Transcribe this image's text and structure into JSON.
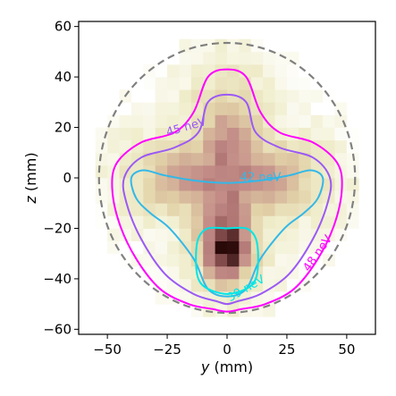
{
  "chart_data": {
    "type": "heatmap",
    "xlabel_var": "y",
    "xlabel_unit": " (mm)",
    "ylabel_var": "z",
    "ylabel_unit": " (mm)",
    "xlim": [
      -62,
      62
    ],
    "ylim": [
      -62,
      62
    ],
    "xticks": [
      -50,
      -25,
      0,
      25,
      50
    ],
    "yticks": [
      -60,
      -40,
      -20,
      0,
      20,
      40,
      60
    ],
    "grid": false,
    "heatmap": {
      "bin_size_mm": 5,
      "colormap": "pink_r",
      "peak": [
        0,
        -30
      ]
    },
    "boundary": {
      "shape": "circle",
      "radius": 53.5,
      "style": "dashed",
      "color": "#808080"
    },
    "contours": [
      {
        "label": "48 neV",
        "color": "#ff00ff",
        "label_at": [
          38,
          -30
        ],
        "label_angle": -55,
        "points": [
          [
            0,
            43
          ],
          [
            8,
            40
          ],
          [
            14,
            26
          ],
          [
            22,
            18
          ],
          [
            36,
            14
          ],
          [
            46,
            6
          ],
          [
            48,
            -4
          ],
          [
            45,
            -18
          ],
          [
            38,
            -32
          ],
          [
            28,
            -44
          ],
          [
            16,
            -50
          ],
          [
            6,
            -52
          ],
          [
            0,
            -53
          ],
          [
            -6,
            -52
          ],
          [
            -16,
            -50
          ],
          [
            -28,
            -44
          ],
          [
            -38,
            -32
          ],
          [
            -45,
            -18
          ],
          [
            -48,
            -4
          ],
          [
            -46,
            6
          ],
          [
            -36,
            14
          ],
          [
            -22,
            18
          ],
          [
            -14,
            26
          ],
          [
            -8,
            40
          ]
        ]
      },
      {
        "label": "45 neV",
        "color": "#9b59f5",
        "label_at": [
          -17,
          20
        ],
        "label_angle": -16,
        "points": [
          [
            0,
            33
          ],
          [
            8,
            30
          ],
          [
            12,
            18
          ],
          [
            22,
            12
          ],
          [
            36,
            8
          ],
          [
            43,
            0
          ],
          [
            42,
            -10
          ],
          [
            36,
            -24
          ],
          [
            26,
            -38
          ],
          [
            14,
            -46
          ],
          [
            4,
            -49
          ],
          [
            0,
            -50
          ],
          [
            -4,
            -49
          ],
          [
            -14,
            -46
          ],
          [
            -26,
            -38
          ],
          [
            -36,
            -24
          ],
          [
            -42,
            -10
          ],
          [
            -43,
            0
          ],
          [
            -36,
            8
          ],
          [
            -22,
            12
          ],
          [
            -12,
            18
          ],
          [
            -8,
            30
          ]
        ]
      },
      {
        "label": "42 neV",
        "color": "#33b8e8",
        "label_at": [
          14,
          0
        ],
        "label_angle": 0,
        "points": [
          [
            0,
            -2
          ],
          [
            14,
            -1
          ],
          [
            26,
            1
          ],
          [
            35,
            3
          ],
          [
            40,
            0
          ],
          [
            38,
            -8
          ],
          [
            32,
            -14
          ],
          [
            24,
            -20
          ],
          [
            14,
            -32
          ],
          [
            8,
            -44
          ],
          [
            0,
            -47
          ],
          [
            -8,
            -44
          ],
          [
            -14,
            -32
          ],
          [
            -24,
            -20
          ],
          [
            -32,
            -14
          ],
          [
            -38,
            -8
          ],
          [
            -40,
            0
          ],
          [
            -35,
            3
          ],
          [
            -26,
            1
          ],
          [
            -14,
            -1
          ]
        ]
      },
      {
        "label": "39 neV",
        "color": "#00e5e5",
        "label_at": [
          8,
          -44
        ],
        "label_angle": -30,
        "points": [
          [
            0,
            -20
          ],
          [
            8,
            -20
          ],
          [
            12,
            -24
          ],
          [
            13,
            -32
          ],
          [
            12,
            -40
          ],
          [
            8,
            -44
          ],
          [
            0,
            -46
          ],
          [
            -8,
            -44
          ],
          [
            -12,
            -40
          ],
          [
            -13,
            -32
          ],
          [
            -12,
            -24
          ],
          [
            -8,
            -20
          ]
        ]
      }
    ]
  }
}
